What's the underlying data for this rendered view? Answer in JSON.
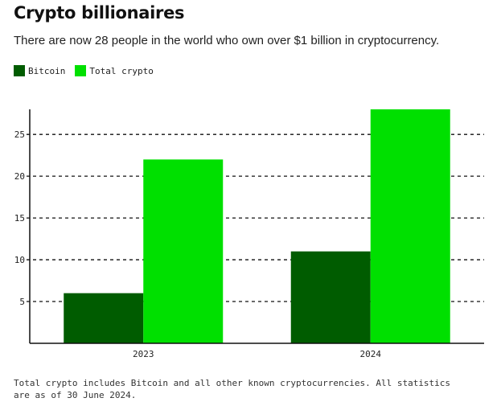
{
  "header": {
    "title": "Crypto billionaires",
    "subtitle": "There are now 28 people in the world who own over $1 billion in cryptocurrency."
  },
  "legend": [
    {
      "label": "Bitcoin",
      "color": "#005c00"
    },
    {
      "label": "Total crypto",
      "color": "#00e000"
    }
  ],
  "footnote": "Total crypto includes Bitcoin and all other known cryptocurrencies. All statistics are as of 30 June 2024.",
  "chart_data": {
    "type": "bar",
    "categories": [
      "2023",
      "2024"
    ],
    "series": [
      {
        "name": "Bitcoin",
        "values": [
          6,
          11
        ],
        "color": "#005c00"
      },
      {
        "name": "Total crypto",
        "values": [
          22,
          28
        ],
        "color": "#00e000"
      }
    ],
    "yticks": [
      5,
      10,
      15,
      20,
      25
    ],
    "ylim": [
      0,
      28
    ],
    "grid": true,
    "legend_position": "top-left"
  }
}
